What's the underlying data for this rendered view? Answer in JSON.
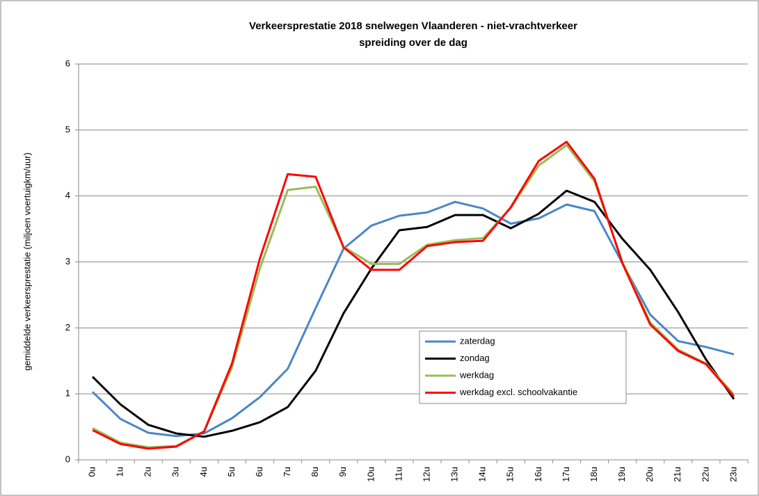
{
  "chart_data": {
    "type": "line",
    "title": "Verkeersprestatie 2018 snelwegen Vlaanderen - niet-vrachtverkeer",
    "subtitle": "spreiding over de dag",
    "y_label": "gemiddelde verkeersprestatie  (miljoen voertuigkm/uur)",
    "categories": [
      "0u",
      "1u",
      "2u",
      "3u",
      "4u",
      "5u",
      "6u",
      "7u",
      "8u",
      "9u",
      "10u",
      "11u",
      "12u",
      "13u",
      "14u",
      "15u",
      "16u",
      "17u",
      "18u",
      "19u",
      "20u",
      "21u",
      "22u",
      "23u"
    ],
    "series": [
      {
        "name": "zaterdag",
        "color": "#4a86c8",
        "values": [
          1.03,
          0.62,
          0.41,
          0.36,
          0.4,
          0.63,
          0.95,
          1.38,
          2.3,
          3.2,
          3.55,
          3.7,
          3.75,
          3.91,
          3.81,
          3.58,
          3.66,
          3.87,
          3.77,
          2.98,
          2.2,
          1.8,
          1.71,
          1.6
        ]
      },
      {
        "name": "zondag",
        "color": "#000000",
        "values": [
          1.26,
          0.84,
          0.53,
          0.4,
          0.35,
          0.44,
          0.57,
          0.8,
          1.35,
          2.22,
          2.9,
          3.48,
          3.53,
          3.71,
          3.71,
          3.51,
          3.73,
          4.08,
          3.91,
          3.35,
          2.88,
          2.24,
          1.52,
          0.92
        ]
      },
      {
        "name": "werkdag",
        "color": "#9bbb59",
        "values": [
          0.48,
          0.26,
          0.19,
          0.21,
          0.43,
          1.4,
          2.9,
          4.09,
          4.14,
          3.23,
          2.97,
          2.97,
          3.26,
          3.33,
          3.36,
          3.82,
          4.46,
          4.77,
          4.22,
          3.0,
          2.08,
          1.67,
          1.46,
          0.99
        ]
      },
      {
        "name": "werkdag excl. schoolvakantie",
        "color": "#ff0000",
        "values": [
          0.45,
          0.24,
          0.17,
          0.2,
          0.43,
          1.46,
          3.05,
          4.33,
          4.29,
          3.22,
          2.88,
          2.88,
          3.24,
          3.3,
          3.32,
          3.83,
          4.53,
          4.82,
          4.26,
          2.98,
          2.05,
          1.65,
          1.45,
          0.96
        ]
      }
    ],
    "ylim": [
      0,
      6
    ],
    "yticks": [
      0,
      1,
      2,
      3,
      4,
      5,
      6
    ],
    "grid": true
  }
}
